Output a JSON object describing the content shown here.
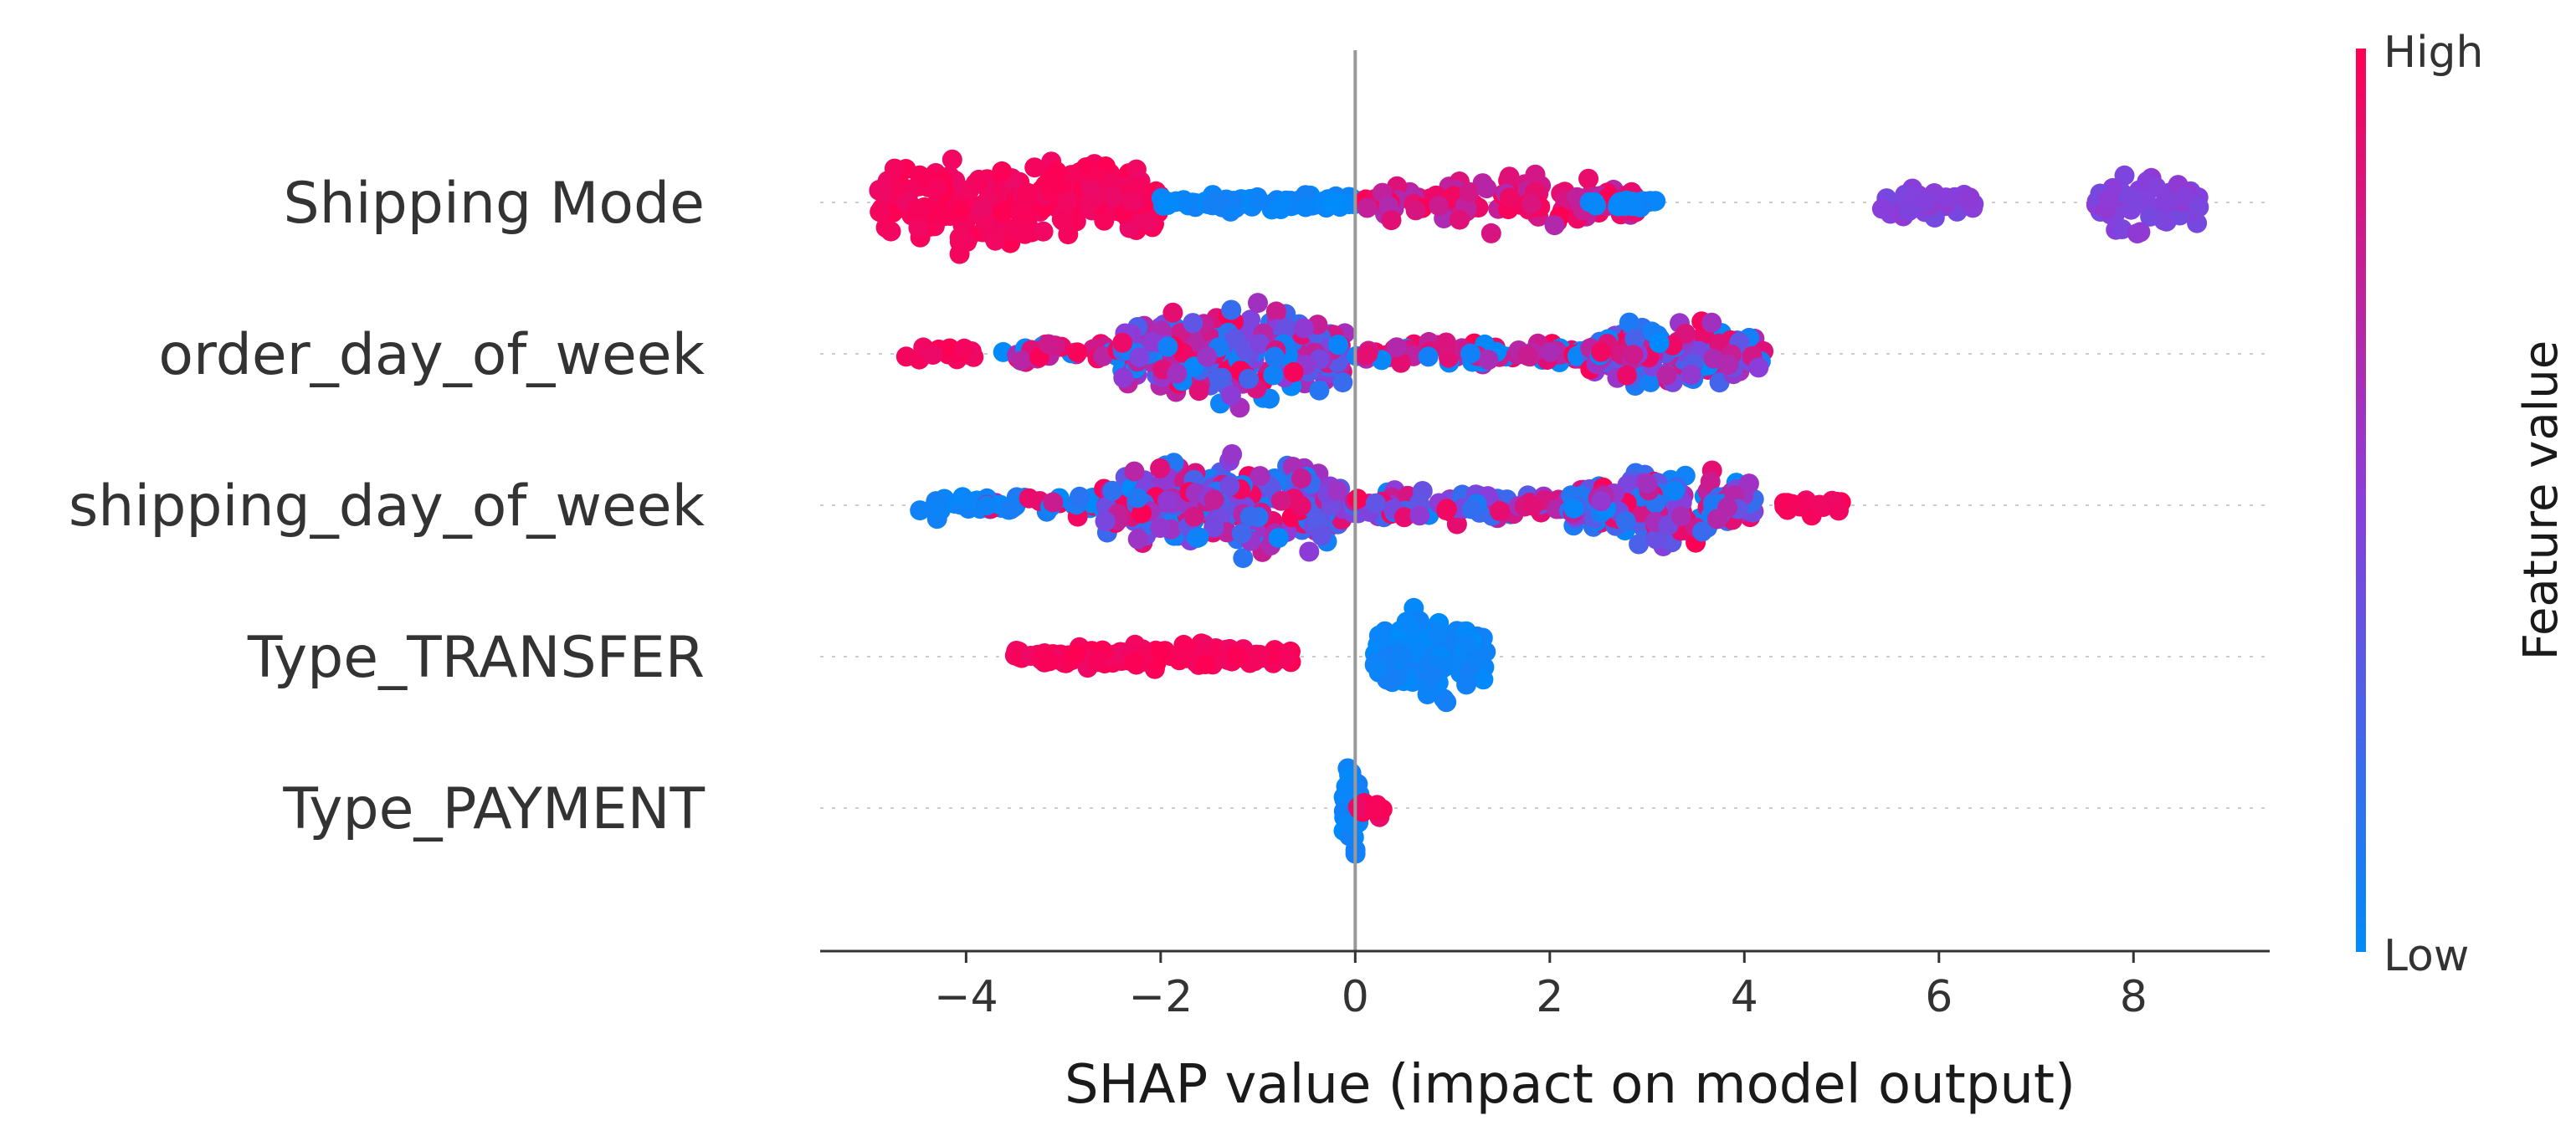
{
  "chart_data": {
    "type": "scatter",
    "subtype": "shap-beeswarm",
    "title": "",
    "xlabel": "SHAP value (impact on model output)",
    "xlim": [
      -5.5,
      9.4
    ],
    "xticks": [
      -4,
      -2,
      0,
      2,
      4,
      6,
      8
    ],
    "xtick_labels": [
      "−4",
      "−2",
      "0",
      "2",
      "4",
      "6",
      "8"
    ],
    "features": [
      "Shipping Mode",
      "order_day_of_week",
      "shipping_day_of_week",
      "Type_TRANSFER",
      "Type_PAYMENT"
    ],
    "colorbar": {
      "title": "Feature value",
      "high_label": "High",
      "low_label": "Low",
      "high_color": "#ff0052",
      "mid_color": "#8a3ddb",
      "low_color": "#008bfb"
    },
    "series": [
      {
        "name": "Shipping Mode",
        "clusters": [
          {
            "x_min": -4.9,
            "x_max": -2.0,
            "spread": 1.0,
            "color": "high",
            "density": 260
          },
          {
            "x_min": -2.0,
            "x_max": 0.05,
            "spread": 0.18,
            "color": "low",
            "density": 90
          },
          {
            "x_min": 0.1,
            "x_max": 2.9,
            "spread": 0.55,
            "color": "highmid",
            "density": 120
          },
          {
            "x_min": 2.3,
            "x_max": 3.1,
            "spread": 0.12,
            "color": "low",
            "density": 20
          },
          {
            "x_min": 5.4,
            "x_max": 6.4,
            "spread": 0.35,
            "color": "mid",
            "density": 40
          },
          {
            "x_min": 7.6,
            "x_max": 8.7,
            "spread": 0.7,
            "color": "mid",
            "density": 60
          }
        ]
      },
      {
        "name": "order_day_of_week",
        "clusters": [
          {
            "x_min": -4.7,
            "x_max": -3.9,
            "spread": 0.2,
            "color": "high",
            "density": 20
          },
          {
            "x_min": -3.7,
            "x_max": -2.3,
            "spread": 0.25,
            "color": "mixhigh",
            "density": 40
          },
          {
            "x_min": -2.4,
            "x_max": -0.1,
            "spread": 0.95,
            "color": "mix",
            "density": 260
          },
          {
            "x_min": 0.0,
            "x_max": 2.4,
            "spread": 0.3,
            "color": "mixhigh",
            "density": 90
          },
          {
            "x_min": 2.4,
            "x_max": 4.2,
            "spread": 0.75,
            "color": "mix",
            "density": 160
          }
        ]
      },
      {
        "name": "shipping_day_of_week",
        "clusters": [
          {
            "x_min": -4.5,
            "x_max": -3.8,
            "spread": 0.25,
            "color": "low",
            "density": 20
          },
          {
            "x_min": -3.8,
            "x_max": -2.5,
            "spread": 0.25,
            "color": "mixlow",
            "density": 40
          },
          {
            "x_min": -2.6,
            "x_max": -0.1,
            "spread": 1.0,
            "color": "mix",
            "density": 280
          },
          {
            "x_min": -0.1,
            "x_max": 2.2,
            "spread": 0.35,
            "color": "mix",
            "density": 110
          },
          {
            "x_min": 2.2,
            "x_max": 4.1,
            "spread": 0.8,
            "color": "mix",
            "density": 180
          },
          {
            "x_min": 4.4,
            "x_max": 5.0,
            "spread": 0.25,
            "color": "high",
            "density": 25
          }
        ]
      },
      {
        "name": "Type_TRANSFER",
        "clusters": [
          {
            "x_min": -3.5,
            "x_max": -0.6,
            "spread": 0.25,
            "color": "high",
            "density": 150
          },
          {
            "x_min": 0.2,
            "x_max": 1.35,
            "spread": 0.95,
            "color": "low",
            "density": 130
          }
        ]
      },
      {
        "name": "Type_PAYMENT",
        "clusters": [
          {
            "x_min": -0.12,
            "x_max": 0.05,
            "spread": 0.9,
            "color": "low",
            "density": 60
          },
          {
            "x_min": 0.0,
            "x_max": 0.3,
            "spread": 0.2,
            "color": "high",
            "density": 12
          }
        ]
      }
    ]
  }
}
